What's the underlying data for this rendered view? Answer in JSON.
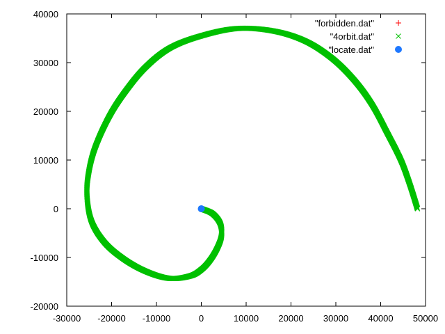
{
  "chart_data": {
    "type": "scatter",
    "title": "",
    "xlabel": "",
    "ylabel": "",
    "xlim": [
      -30000,
      50000
    ],
    "ylim": [
      -20000,
      40000
    ],
    "grid": false,
    "legend_position": "top-right",
    "x_ticks": [
      -30000,
      -20000,
      -10000,
      0,
      10000,
      20000,
      30000,
      40000,
      50000
    ],
    "y_ticks": [
      -20000,
      -10000,
      0,
      10000,
      20000,
      30000,
      40000
    ],
    "x_tick_labels": [
      "-30000",
      "-20000",
      "-10000",
      "0",
      "10000",
      "20000",
      "30000",
      "40000",
      "50000"
    ],
    "y_tick_labels": [
      "-20000",
      "-10000",
      "0",
      "10000",
      "20000",
      "30000",
      "40000"
    ],
    "series": [
      {
        "name": "\"forbidden.dat\"",
        "marker": "plus",
        "color": "#ff0000",
        "x": [],
        "y": []
      },
      {
        "name": "\"4orbit.dat\"",
        "marker": "cross",
        "color": "#00c000",
        "x": [
          0,
          2500,
          4200,
          4500,
          3600,
          2000,
          0,
          -2500,
          -7000,
          -12000,
          -17000,
          -21500,
          -24500,
          -25500,
          -25000,
          -23500,
          -20500,
          -17000,
          -12500,
          -7000,
          0,
          8000,
          16000,
          23000,
          29000,
          34000,
          38000,
          41500,
          44500,
          46500,
          48200
        ],
        "y": [
          0,
          -1000,
          -3000,
          -5500,
          -8000,
          -10500,
          -12500,
          -13800,
          -14300,
          -13000,
          -10500,
          -7000,
          -2500,
          3000,
          8000,
          13000,
          19000,
          24000,
          29000,
          33000,
          35500,
          37000,
          36500,
          34500,
          31000,
          26500,
          21500,
          15500,
          10000,
          5000,
          0
        ]
      },
      {
        "name": "\"locate.dat\"",
        "marker": "circle",
        "color": "#1e78ff",
        "x": [
          0
        ],
        "y": [
          0
        ]
      }
    ]
  }
}
